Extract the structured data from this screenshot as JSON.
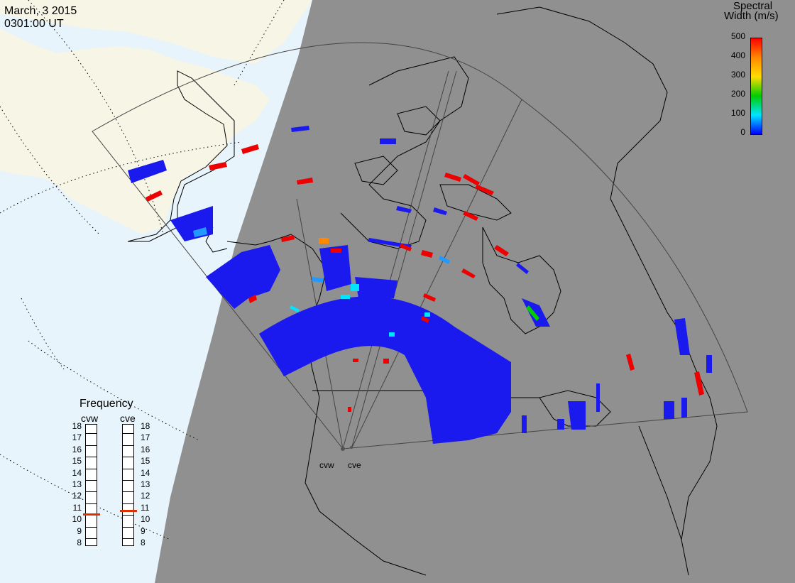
{
  "header": {
    "date": "March, 3 2015",
    "time": "0301:00 UT"
  },
  "colorbar": {
    "title_line1": "Spectral",
    "title_line2": "Width (m/s)",
    "ticks": [
      "500",
      "400",
      "300",
      "200",
      "100",
      "0"
    ],
    "colors": [
      "#ff0000",
      "#ff8800",
      "#ffdd00",
      "#00cc00",
      "#00e5ff",
      "#0000ff"
    ]
  },
  "frequency_panel": {
    "title": "Frequency",
    "radars": [
      {
        "label": "cvw",
        "frequency_mhz": 10.5
      },
      {
        "label": "cve",
        "frequency_mhz": 10.8
      }
    ],
    "ticks": [
      "18",
      "17",
      "16",
      "15",
      "14",
      "13",
      "12",
      "11",
      "10",
      "9",
      "8"
    ]
  },
  "map": {
    "site_labels": [
      "cvw",
      "cve"
    ],
    "night_color": "#909090",
    "land_day_color": "#f7f5e6",
    "ocean_day_color": "#e8f4fb",
    "echo_color": "#1a1aee"
  }
}
